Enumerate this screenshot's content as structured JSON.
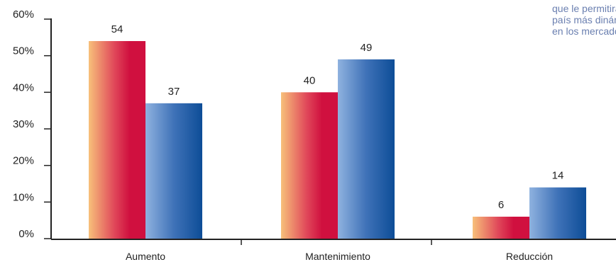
{
  "chart_data": {
    "type": "bar",
    "categories": [
      "Aumento",
      "Mantenimiento",
      "Reducción"
    ],
    "series": [
      {
        "values": [
          54,
          40,
          6
        ],
        "color": "#d0103f"
      },
      {
        "values": [
          37,
          49,
          14
        ],
        "color": "#0d4d97"
      }
    ],
    "data_labels": [
      [
        "54",
        "40",
        "6"
      ],
      [
        "37",
        "49",
        "14"
      ]
    ],
    "y_ticks": [
      "0%",
      "10%",
      "20%",
      "30%",
      "40%",
      "50%",
      "60%"
    ],
    "ylim": [
      0,
      60
    ],
    "grid": false,
    "title": "",
    "xlabel": "",
    "ylabel": ""
  },
  "note_lines": [
    "que le permitirá s",
    "país más dinámic",
    "en los mercados"
  ]
}
